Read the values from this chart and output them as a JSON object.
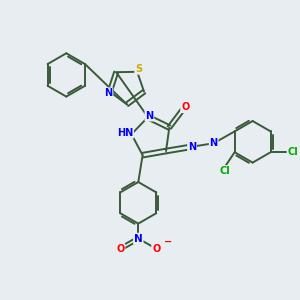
{
  "background_color": "#e8edf2",
  "bond_color": "#3a5a3a",
  "atom_colors": {
    "N": "#0000ff",
    "O": "#ff0000",
    "S": "#ccaa00",
    "Cl": "#00aa00",
    "C": "#3a5a3a",
    "H": "#808080"
  },
  "figsize": [
    3.0,
    3.0
  ],
  "dpi": 100
}
